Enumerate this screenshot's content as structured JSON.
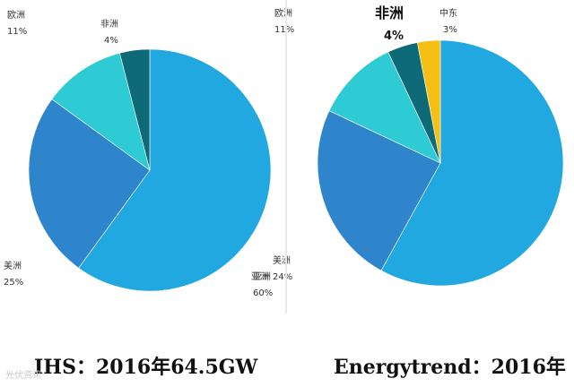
{
  "chart_data": [
    {
      "type": "pie",
      "caption": "IHS：2016年64.5GW",
      "slices": [
        {
          "label": "亚洲",
          "value": 60,
          "value_label": "60%",
          "color": "#22a8e0"
        },
        {
          "label": "美洲",
          "value": 25,
          "value_label": "25%",
          "color": "#2f85cc"
        },
        {
          "label": "欧洲",
          "value": 11,
          "value_label": "11%",
          "color": "#2ecbd4"
        },
        {
          "label": "非洲",
          "value": 4,
          "value_label": "4%",
          "color": "#0f6a78"
        }
      ]
    },
    {
      "type": "pie",
      "caption": "Energytrend：2016年",
      "slices": [
        {
          "label": "亚洲",
          "value": 58,
          "value_label": "",
          "color": "#22a8e0"
        },
        {
          "label": "美洲",
          "value": 24,
          "value_label": "24%",
          "color": "#2f85cc"
        },
        {
          "label": "欧洲",
          "value": 11,
          "value_label": "11%",
          "color": "#2ecbd4"
        },
        {
          "label": "非洲",
          "value": 4,
          "value_label": "4%",
          "color": "#0f6a78"
        },
        {
          "label": "中东",
          "value": 3,
          "value_label": "3%",
          "color": "#f5bf14"
        }
      ]
    }
  ],
  "watermark": "光伏资讯"
}
